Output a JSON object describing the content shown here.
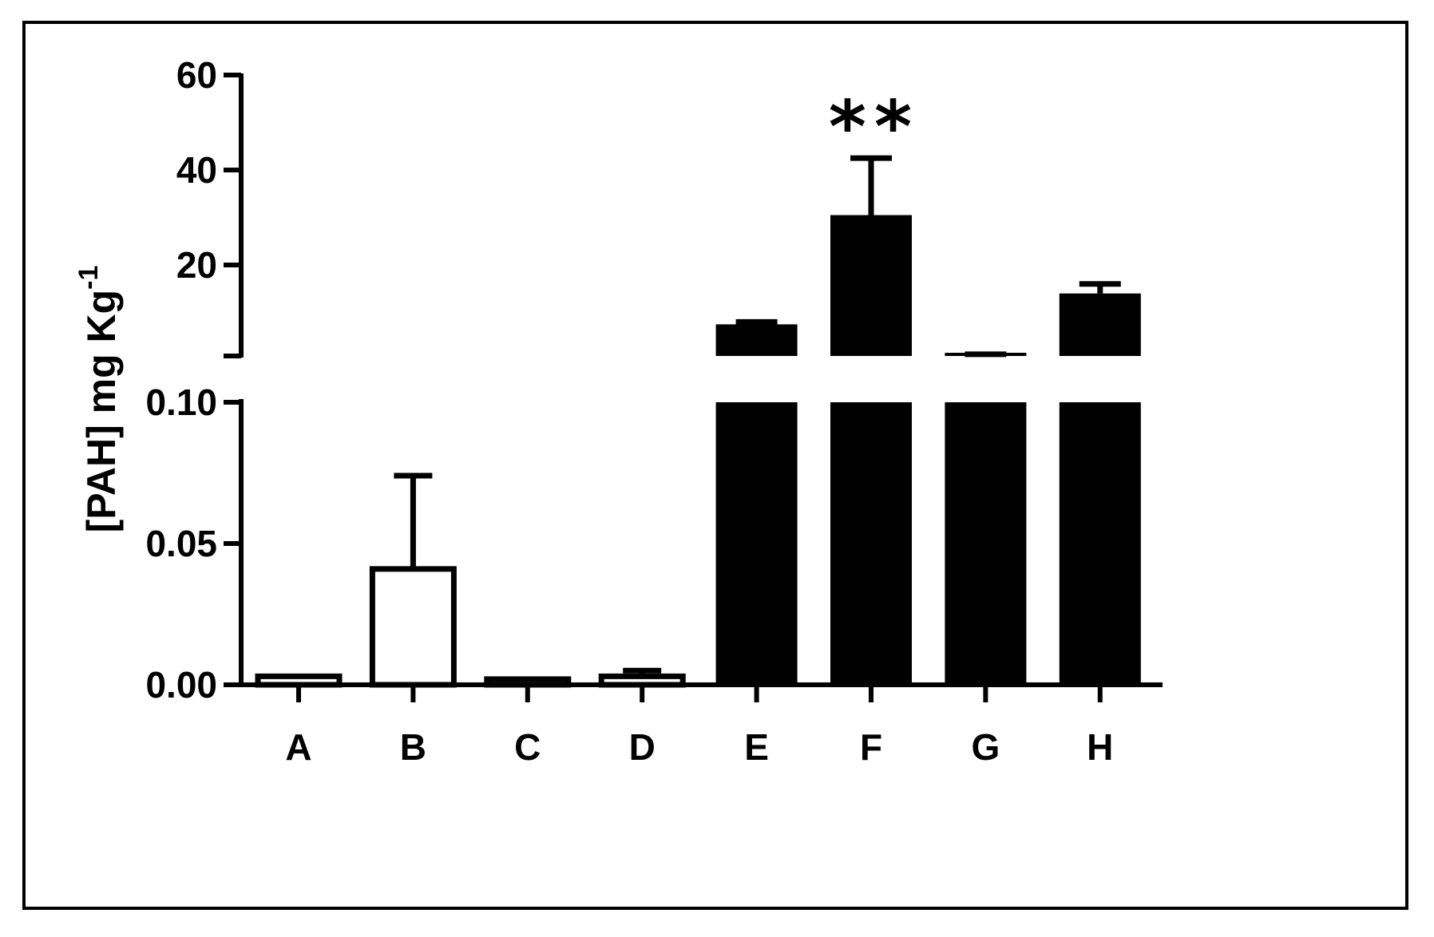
{
  "chart_data": {
    "type": "bar",
    "title": "",
    "xlabel": "",
    "ylabel": "[PAH] mg Kg",
    "ylabel_superscript": "-1",
    "axis_break": true,
    "lower_segment": {
      "ylim": [
        0,
        0.1
      ],
      "ticks": [
        "0.00",
        "0.05",
        "0.10"
      ]
    },
    "upper_segment": {
      "ylim": [
        0,
        60
      ],
      "ticks": [
        "20",
        "40",
        "60"
      ]
    },
    "categories": [
      "A",
      "B",
      "C",
      "D",
      "E",
      "F",
      "G",
      "H"
    ],
    "values": [
      0.003,
      0.041,
      0.002,
      0.003,
      7.5,
      30.5,
      0.8,
      14.0
    ],
    "error_upper": [
      0,
      0.074,
      0,
      0.005,
      8.0,
      42.5,
      1.2,
      16.0
    ],
    "fills": [
      "white",
      "white",
      "white",
      "white",
      "black",
      "black",
      "black",
      "black"
    ],
    "annotations": [
      {
        "category": "F",
        "text": "**"
      }
    ],
    "grid": false,
    "legend": "none"
  },
  "colors": {
    "axis": "#000000",
    "bar_fill_dark": "#000000",
    "bar_fill_light": "#ffffff",
    "background": "#ffffff"
  }
}
